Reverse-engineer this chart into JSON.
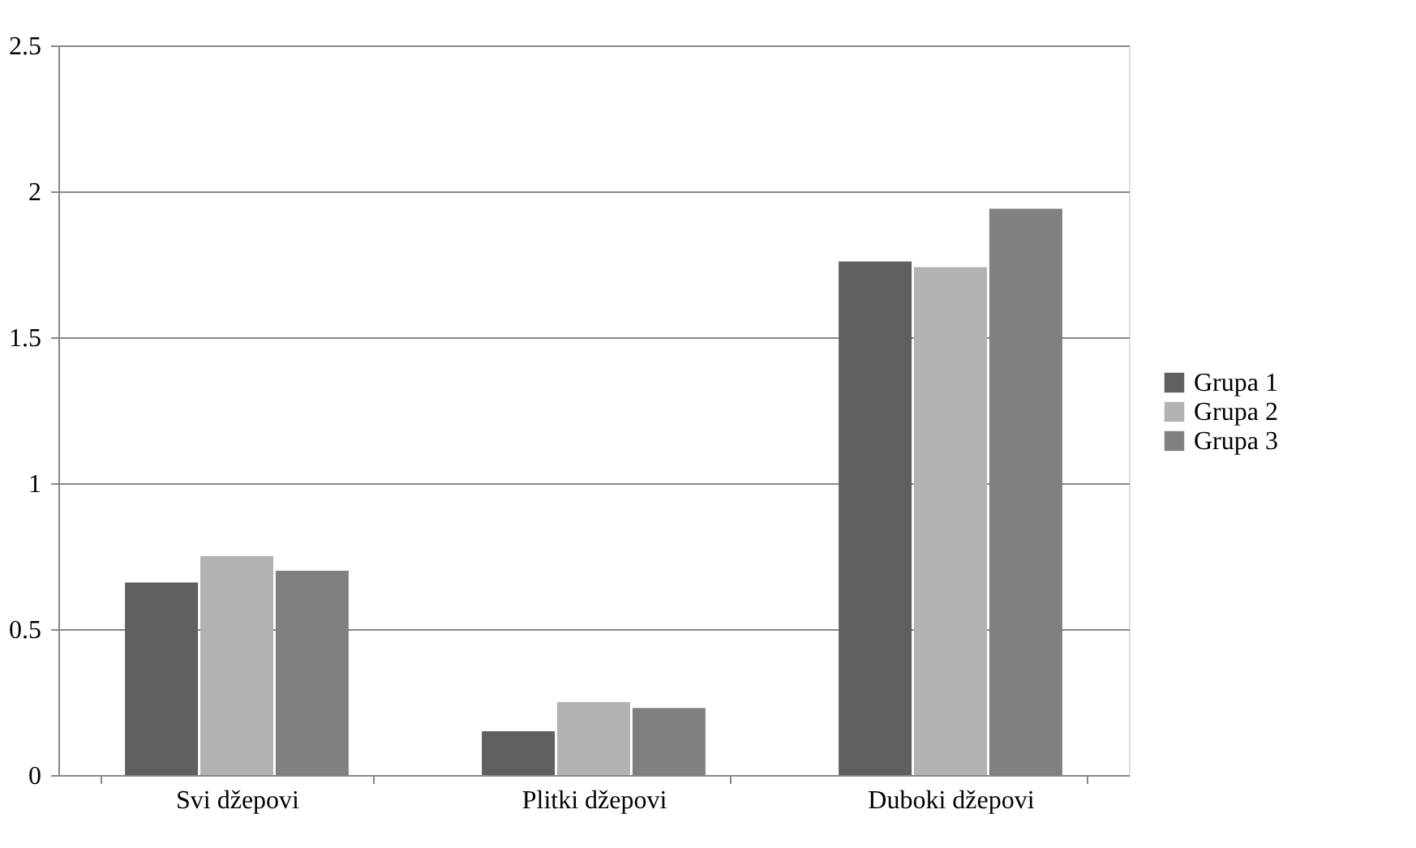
{
  "chart_data": {
    "type": "bar",
    "categories": [
      "Svi džepovi",
      "Plitki džepovi",
      "Duboki džepovi"
    ],
    "series": [
      {
        "name": "Grupa 1",
        "color": "#5f5f5f",
        "values": [
          0.66,
          0.15,
          1.76
        ]
      },
      {
        "name": "Grupa 2",
        "color": "#b2b2b2",
        "values": [
          0.75,
          0.25,
          1.74
        ]
      },
      {
        "name": "Grupa 3",
        "color": "#808080",
        "values": [
          0.7,
          0.23,
          1.94
        ]
      }
    ],
    "ylim": [
      0,
      2.5
    ],
    "yticks": [
      0,
      0.5,
      1,
      1.5,
      2,
      2.5
    ],
    "grid": "y",
    "legend": "right"
  }
}
